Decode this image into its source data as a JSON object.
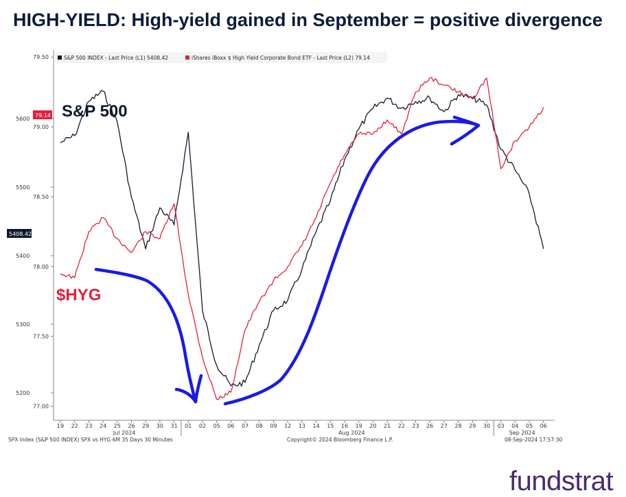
{
  "slide_title": "HIGH-YIELD: High-yield gained in September = positive divergence",
  "logo_text": "fundstrat",
  "chart_data": {
    "type": "line",
    "x_tick_labels": [
      "19",
      "22",
      "23",
      "24",
      "25",
      "26",
      "29",
      "30",
      "31",
      "01",
      "02",
      "05",
      "06",
      "07",
      "08",
      "09",
      "12",
      "13",
      "14",
      "15",
      "16",
      "19",
      "20",
      "21",
      "22",
      "23",
      "26",
      "27",
      "28",
      "29",
      "30",
      "03",
      "04",
      "05",
      "06"
    ],
    "month_labels": [
      {
        "label": "Jul 2024",
        "after_tick": 4
      },
      {
        "label": "Aug 2024",
        "after_tick": 20
      },
      {
        "label": "Sep 2024",
        "after_tick": 32
      }
    ],
    "month_boundaries_after_tick": [
      8,
      30
    ],
    "left_axis": {
      "ticks": [
        5200,
        5300,
        5400,
        5500,
        5600
      ],
      "range": [
        5160,
        5700
      ]
    },
    "right_axis": {
      "ticks": [
        "77.00",
        "77.50",
        "78.00",
        "78.50",
        "79.00",
        "79.50"
      ],
      "range": [
        76.9,
        79.55
      ]
    },
    "series": [
      {
        "name": "S&P 500 INDEX - Last Price (L1)",
        "legend_value": "5408.42",
        "axis": "left",
        "color": "#0e1a2b",
        "values": [
          5565,
          5575,
          5625,
          5640,
          5595,
          5485,
          5410,
          5470,
          5445,
          5580,
          5320,
          5240,
          5210,
          5215,
          5270,
          5320,
          5335,
          5380,
          5435,
          5480,
          5540,
          5585,
          5615,
          5630,
          5615,
          5625,
          5630,
          5610,
          5635,
          5630,
          5620,
          5555,
          5525,
          5490,
          5410
        ]
      },
      {
        "name": "iShares iBoxx $ High Yield Corporate Bond ETF - Last Price (L2)",
        "legend_value": "79.14",
        "axis": "right",
        "color": "#e0203c",
        "values": [
          77.95,
          77.92,
          78.25,
          78.35,
          78.2,
          78.1,
          78.25,
          78.2,
          78.45,
          77.8,
          77.35,
          77.05,
          77.1,
          77.55,
          77.75,
          77.9,
          78.0,
          78.15,
          78.35,
          78.6,
          78.8,
          78.95,
          78.95,
          79.05,
          78.95,
          79.25,
          79.35,
          79.3,
          79.25,
          79.2,
          79.35,
          78.7,
          78.9,
          79.0,
          79.14
        ]
      }
    ],
    "last_value_tags": {
      "left": "5408.42",
      "right": "79.14"
    },
    "annotations": [
      "S&P 500",
      "$HYG"
    ],
    "footer_left": "SPX Index (S&P 500 INDEX) SPX vs HYG 6M 35 Days 30 Minutes",
    "footer_center": "Copyright© 2024 Bloomberg Finance L.P.",
    "footer_right": "08-Sep-2024 17:57:30",
    "arrow_color": "#1a1ae6",
    "grid": false,
    "legend_position": "top-left"
  }
}
